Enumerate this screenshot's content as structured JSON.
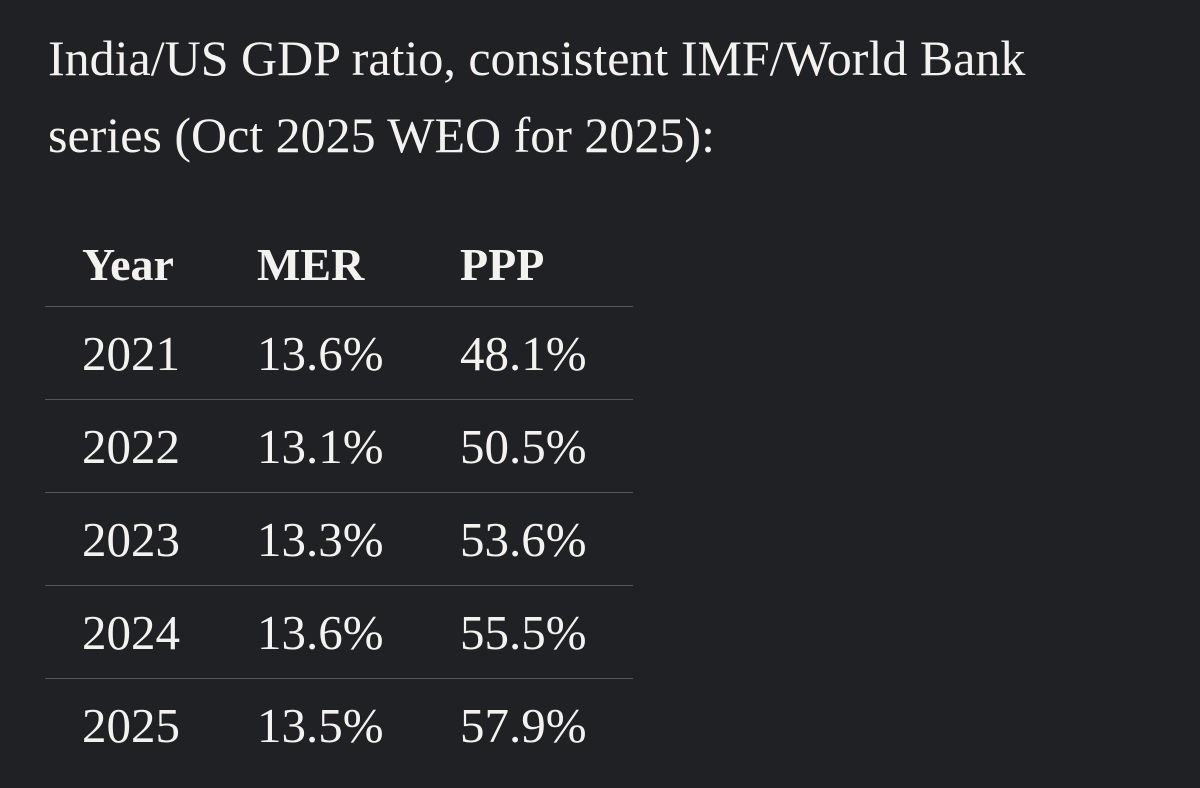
{
  "page": {
    "background_color": "#202124",
    "text_color": "#f4f2ee",
    "divider_color": "#54555a"
  },
  "title": {
    "line1": "India/US GDP ratio, consistent IMF/World Bank",
    "line2": "series (Oct 2025 WEO for 2025):"
  },
  "table": {
    "columns": [
      "Year",
      "MER",
      "PPP"
    ],
    "rows": [
      {
        "year": "2021",
        "mer": "13.6%",
        "ppp": "48.1%"
      },
      {
        "year": "2022",
        "mer": "13.1%",
        "ppp": "50.5%"
      },
      {
        "year": "2023",
        "mer": "13.3%",
        "ppp": "53.6%"
      },
      {
        "year": "2024",
        "mer": "13.6%",
        "ppp": "55.5%"
      },
      {
        "year": "2025",
        "mer": "13.5%",
        "ppp": "57.9%"
      }
    ]
  }
}
